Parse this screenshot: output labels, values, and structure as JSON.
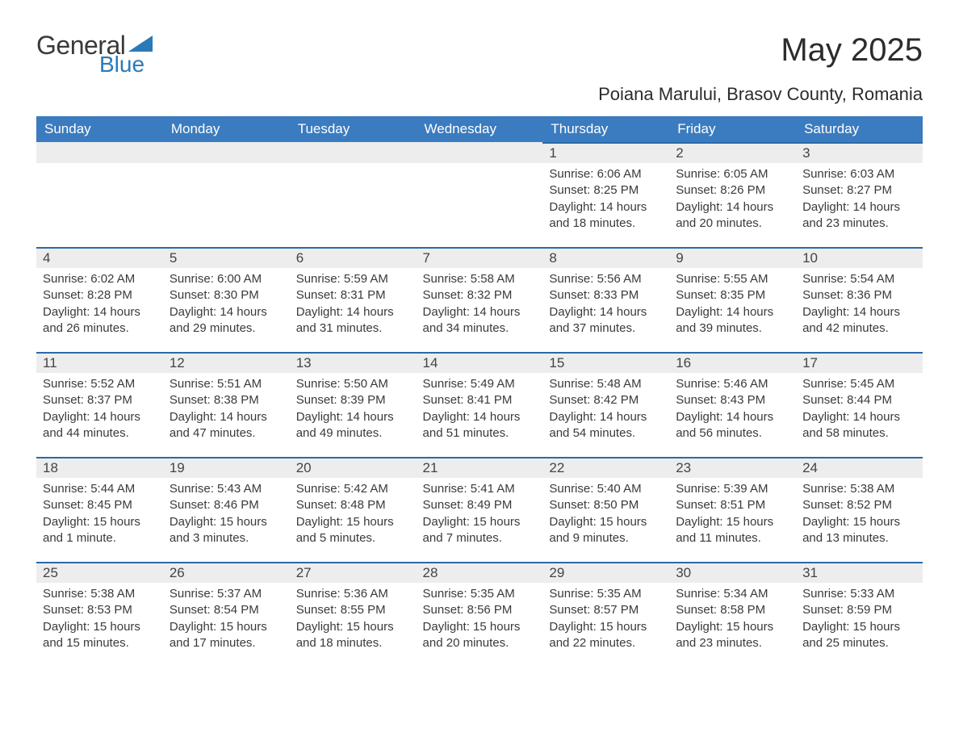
{
  "logo": {
    "text1": "General",
    "text2": "Blue",
    "shape_color": "#2a7ab9"
  },
  "title": "May 2025",
  "subtitle": "Poiana Marului, Brasov County, Romania",
  "colors": {
    "header_bg": "#3b7bbf",
    "header_text": "#ffffff",
    "daynum_bg": "#ededed",
    "daynum_border": "#2a6aa8",
    "body_text": "#3a3a3a"
  },
  "weekdays": [
    "Sunday",
    "Monday",
    "Tuesday",
    "Wednesday",
    "Thursday",
    "Friday",
    "Saturday"
  ],
  "weeks": [
    [
      null,
      null,
      null,
      null,
      {
        "n": "1",
        "sunrise": "6:06 AM",
        "sunset": "8:25 PM",
        "daylight": "14 hours and 18 minutes."
      },
      {
        "n": "2",
        "sunrise": "6:05 AM",
        "sunset": "8:26 PM",
        "daylight": "14 hours and 20 minutes."
      },
      {
        "n": "3",
        "sunrise": "6:03 AM",
        "sunset": "8:27 PM",
        "daylight": "14 hours and 23 minutes."
      }
    ],
    [
      {
        "n": "4",
        "sunrise": "6:02 AM",
        "sunset": "8:28 PM",
        "daylight": "14 hours and 26 minutes."
      },
      {
        "n": "5",
        "sunrise": "6:00 AM",
        "sunset": "8:30 PM",
        "daylight": "14 hours and 29 minutes."
      },
      {
        "n": "6",
        "sunrise": "5:59 AM",
        "sunset": "8:31 PM",
        "daylight": "14 hours and 31 minutes."
      },
      {
        "n": "7",
        "sunrise": "5:58 AM",
        "sunset": "8:32 PM",
        "daylight": "14 hours and 34 minutes."
      },
      {
        "n": "8",
        "sunrise": "5:56 AM",
        "sunset": "8:33 PM",
        "daylight": "14 hours and 37 minutes."
      },
      {
        "n": "9",
        "sunrise": "5:55 AM",
        "sunset": "8:35 PM",
        "daylight": "14 hours and 39 minutes."
      },
      {
        "n": "10",
        "sunrise": "5:54 AM",
        "sunset": "8:36 PM",
        "daylight": "14 hours and 42 minutes."
      }
    ],
    [
      {
        "n": "11",
        "sunrise": "5:52 AM",
        "sunset": "8:37 PM",
        "daylight": "14 hours and 44 minutes."
      },
      {
        "n": "12",
        "sunrise": "5:51 AM",
        "sunset": "8:38 PM",
        "daylight": "14 hours and 47 minutes."
      },
      {
        "n": "13",
        "sunrise": "5:50 AM",
        "sunset": "8:39 PM",
        "daylight": "14 hours and 49 minutes."
      },
      {
        "n": "14",
        "sunrise": "5:49 AM",
        "sunset": "8:41 PM",
        "daylight": "14 hours and 51 minutes."
      },
      {
        "n": "15",
        "sunrise": "5:48 AM",
        "sunset": "8:42 PM",
        "daylight": "14 hours and 54 minutes."
      },
      {
        "n": "16",
        "sunrise": "5:46 AM",
        "sunset": "8:43 PM",
        "daylight": "14 hours and 56 minutes."
      },
      {
        "n": "17",
        "sunrise": "5:45 AM",
        "sunset": "8:44 PM",
        "daylight": "14 hours and 58 minutes."
      }
    ],
    [
      {
        "n": "18",
        "sunrise": "5:44 AM",
        "sunset": "8:45 PM",
        "daylight": "15 hours and 1 minute."
      },
      {
        "n": "19",
        "sunrise": "5:43 AM",
        "sunset": "8:46 PM",
        "daylight": "15 hours and 3 minutes."
      },
      {
        "n": "20",
        "sunrise": "5:42 AM",
        "sunset": "8:48 PM",
        "daylight": "15 hours and 5 minutes."
      },
      {
        "n": "21",
        "sunrise": "5:41 AM",
        "sunset": "8:49 PM",
        "daylight": "15 hours and 7 minutes."
      },
      {
        "n": "22",
        "sunrise": "5:40 AM",
        "sunset": "8:50 PM",
        "daylight": "15 hours and 9 minutes."
      },
      {
        "n": "23",
        "sunrise": "5:39 AM",
        "sunset": "8:51 PM",
        "daylight": "15 hours and 11 minutes."
      },
      {
        "n": "24",
        "sunrise": "5:38 AM",
        "sunset": "8:52 PM",
        "daylight": "15 hours and 13 minutes."
      }
    ],
    [
      {
        "n": "25",
        "sunrise": "5:38 AM",
        "sunset": "8:53 PM",
        "daylight": "15 hours and 15 minutes."
      },
      {
        "n": "26",
        "sunrise": "5:37 AM",
        "sunset": "8:54 PM",
        "daylight": "15 hours and 17 minutes."
      },
      {
        "n": "27",
        "sunrise": "5:36 AM",
        "sunset": "8:55 PM",
        "daylight": "15 hours and 18 minutes."
      },
      {
        "n": "28",
        "sunrise": "5:35 AM",
        "sunset": "8:56 PM",
        "daylight": "15 hours and 20 minutes."
      },
      {
        "n": "29",
        "sunrise": "5:35 AM",
        "sunset": "8:57 PM",
        "daylight": "15 hours and 22 minutes."
      },
      {
        "n": "30",
        "sunrise": "5:34 AM",
        "sunset": "8:58 PM",
        "daylight": "15 hours and 23 minutes."
      },
      {
        "n": "31",
        "sunrise": "5:33 AM",
        "sunset": "8:59 PM",
        "daylight": "15 hours and 25 minutes."
      }
    ]
  ],
  "labels": {
    "sunrise": "Sunrise: ",
    "sunset": "Sunset: ",
    "daylight": "Daylight: "
  }
}
